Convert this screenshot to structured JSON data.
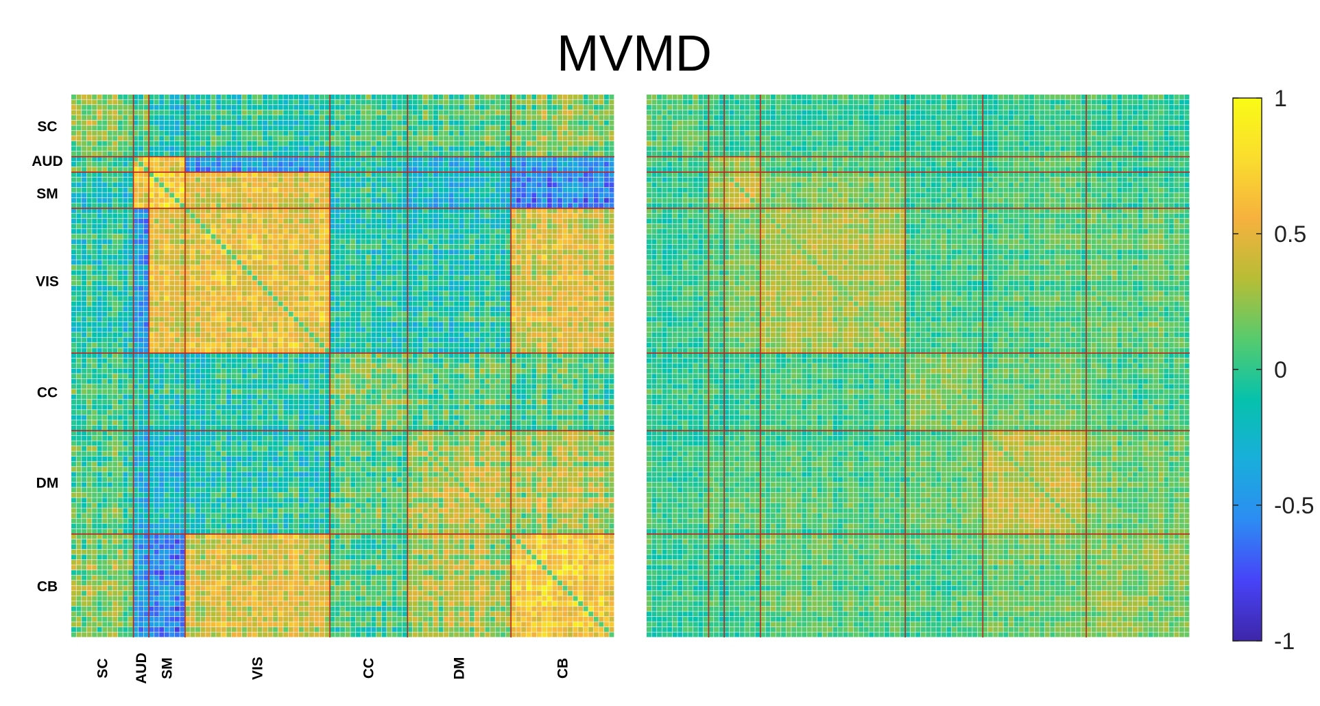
{
  "title": "MVMD",
  "chart_data": [
    {
      "type": "heatmap",
      "panel": "left",
      "title": "",
      "n": 105,
      "networks": [
        {
          "name": "SC",
          "start": 0,
          "size": 12
        },
        {
          "name": "AUD",
          "start": 12,
          "size": 3
        },
        {
          "name": "SM",
          "start": 15,
          "size": 7
        },
        {
          "name": "VIS",
          "start": 22,
          "size": 28
        },
        {
          "name": "CC",
          "start": 50,
          "size": 15
        },
        {
          "name": "DM",
          "start": 65,
          "size": 20
        },
        {
          "name": "CB",
          "start": 85,
          "size": 20
        }
      ],
      "row_labels": [
        "SC",
        "AUD",
        "SM",
        "VIS",
        "CC",
        "DM",
        "CB"
      ],
      "col_labels": [
        "SC",
        "AUD",
        "SM",
        "VIS",
        "CC",
        "DM",
        "CB"
      ],
      "block_means": [
        [
          0.25,
          0.05,
          -0.15,
          -0.05,
          0.05,
          0.05,
          0.2
        ],
        [
          0.05,
          0.6,
          0.55,
          -0.45,
          -0.1,
          -0.3,
          -0.45
        ],
        [
          -0.15,
          0.55,
          0.7,
          0.5,
          -0.05,
          -0.25,
          -0.55
        ],
        [
          -0.05,
          -0.45,
          0.5,
          0.55,
          -0.05,
          -0.1,
          0.45
        ],
        [
          0.05,
          -0.1,
          -0.05,
          -0.05,
          0.2,
          0.05,
          0.05
        ],
        [
          0.05,
          -0.3,
          -0.25,
          -0.1,
          0.05,
          0.3,
          0.3
        ],
        [
          0.2,
          -0.45,
          -0.55,
          0.45,
          0.05,
          0.3,
          0.65
        ]
      ]
    },
    {
      "type": "heatmap",
      "panel": "right",
      "title": "",
      "n": 105,
      "networks": [
        {
          "name": "SC",
          "start": 0,
          "size": 12
        },
        {
          "name": "AUD",
          "start": 12,
          "size": 3
        },
        {
          "name": "SM",
          "start": 15,
          "size": 7
        },
        {
          "name": "VIS",
          "start": 22,
          "size": 28
        },
        {
          "name": "CC",
          "start": 50,
          "size": 15
        },
        {
          "name": "DM",
          "start": 65,
          "size": 20
        },
        {
          "name": "CB",
          "start": 85,
          "size": 20
        }
      ],
      "block_means": [
        [
          0.1,
          0.0,
          0.0,
          0.0,
          0.0,
          0.0,
          0.0
        ],
        [
          0.0,
          0.25,
          0.25,
          0.05,
          0.0,
          0.05,
          0.0
        ],
        [
          0.0,
          0.25,
          0.4,
          0.15,
          0.0,
          0.05,
          0.0
        ],
        [
          0.0,
          0.05,
          0.15,
          0.3,
          0.05,
          0.05,
          0.1
        ],
        [
          0.0,
          0.0,
          0.0,
          0.05,
          0.2,
          0.1,
          0.05
        ],
        [
          0.0,
          0.05,
          0.05,
          0.05,
          0.1,
          0.35,
          0.15
        ],
        [
          0.0,
          0.0,
          0.0,
          0.1,
          0.05,
          0.15,
          0.2
        ]
      ]
    }
  ],
  "colorbar": {
    "min": -1,
    "max": 1,
    "tick_labels": [
      "1",
      "0.5",
      "0",
      "-0.5",
      "-1"
    ],
    "tick_values": [
      1,
      0.5,
      0,
      -0.5,
      -1
    ],
    "colormap": "parula",
    "colors": [
      "#3e26a8",
      "#4743f8",
      "#2d8cf3",
      "#19aedb",
      "#06c2ac",
      "#56cb6e",
      "#b7bd36",
      "#f6b13e",
      "#fadd2e",
      "#f9fb15"
    ]
  },
  "grid_line_color": "#c02020"
}
